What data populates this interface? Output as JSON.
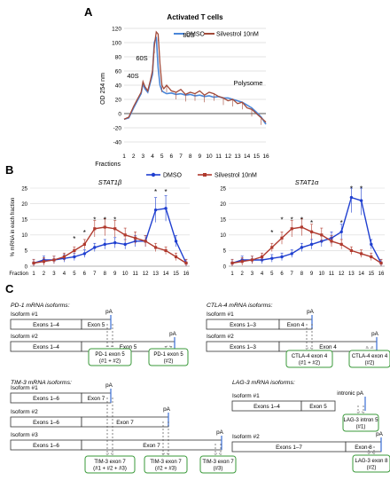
{
  "chart_data": [
    {
      "panel": "A",
      "type": "line",
      "title": "Activated T cells",
      "ylabel": "OD 254 nm",
      "xlabel": "Fractions",
      "ylim": [
        -40,
        120
      ],
      "yticks": [
        120,
        100,
        80,
        60,
        40,
        20,
        0,
        -20,
        -40
      ],
      "x_ticks": [
        "1",
        "2",
        "3",
        "4",
        "5",
        "6",
        "7",
        "8",
        "9",
        "10",
        "11",
        "12",
        "13",
        "14",
        "15",
        "16"
      ],
      "legend_position": "top-right",
      "annotations": [
        "80S",
        "60S",
        "40S",
        "Polysome"
      ],
      "series": [
        {
          "name": "DMSO",
          "color": "#4a86d8",
          "x": [
            1,
            1.5,
            2,
            2.4,
            2.8,
            3,
            3.2,
            3.5,
            3.8,
            4,
            4.2,
            4.4,
            4.6,
            4.8,
            5,
            5.2,
            5.5,
            6,
            6.5,
            7,
            7.5,
            8,
            8.5,
            9,
            9.5,
            10,
            10.5,
            11,
            11.5,
            12,
            12.5,
            13,
            13.5,
            14,
            14.5,
            15,
            15.5,
            16
          ],
          "values": [
            -8,
            -6,
            8,
            18,
            28,
            42,
            35,
            30,
            45,
            55,
            100,
            108,
            65,
            40,
            32,
            30,
            28,
            29,
            27,
            28,
            26,
            27,
            25,
            26,
            24,
            25,
            23,
            24,
            22,
            22,
            20,
            18,
            16,
            12,
            8,
            2,
            -5,
            -15
          ]
        },
        {
          "name": "Silvestrol 10nM",
          "color": "#a24a3a",
          "x": [
            1,
            1.5,
            2,
            2.4,
            2.8,
            3,
            3.2,
            3.5,
            3.8,
            4,
            4.2,
            4.4,
            4.6,
            4.8,
            5,
            5.2,
            5.5,
            6,
            6.5,
            7,
            7.5,
            8,
            8.5,
            9,
            9.5,
            10,
            10.5,
            11,
            11.5,
            12,
            12.5,
            13,
            13.5,
            14,
            14.5,
            15,
            15.5,
            16
          ],
          "values": [
            -8,
            -5,
            10,
            20,
            30,
            45,
            38,
            32,
            48,
            60,
            95,
            115,
            112,
            70,
            40,
            35,
            40,
            32,
            30,
            34,
            27,
            30,
            28,
            32,
            26,
            30,
            28,
            24,
            22,
            18,
            20,
            14,
            16,
            8,
            6,
            0,
            -6,
            -12
          ]
        }
      ]
    },
    {
      "panel": "B",
      "type": "line",
      "title": "STAT1β",
      "ylabel": "% mRNA in each fraction",
      "xlabel": "Fraction",
      "ylim": [
        0,
        25
      ],
      "yticks": [
        0,
        5,
        10,
        15,
        20,
        25
      ],
      "categories": [
        "1",
        "2",
        "3",
        "4",
        "5",
        "6",
        "7",
        "8",
        "9",
        "10",
        "11",
        "12",
        "13",
        "14",
        "15",
        "16"
      ],
      "legend_position": "top",
      "significance_marks": [
        "*",
        "*",
        "*",
        "*",
        "*",
        "*",
        "*"
      ],
      "series": [
        {
          "name": "DMSO",
          "color": "#1f3fd0",
          "values": [
            1,
            2,
            2,
            2.5,
            3,
            4,
            6,
            7,
            7.5,
            7,
            8,
            8,
            18,
            18.5,
            8,
            1
          ]
        },
        {
          "name": "Silvestrol 10nM",
          "color": "#b03a2e",
          "values": [
            1,
            1.5,
            2,
            3,
            5,
            7,
            12,
            12.5,
            12,
            10,
            9,
            8,
            6,
            5,
            3,
            1
          ]
        }
      ]
    },
    {
      "panel": "B",
      "type": "line",
      "title": "STAT1α",
      "ylabel": "",
      "xlabel": "",
      "ylim": [
        0,
        25
      ],
      "yticks": [
        0,
        5,
        10,
        15,
        20,
        25
      ],
      "categories": [
        "1",
        "2",
        "3",
        "4",
        "5",
        "6",
        "7",
        "8",
        "9",
        "10",
        "11",
        "12",
        "13",
        "14",
        "15",
        "16"
      ],
      "significance_marks": [
        "*",
        "*",
        "*",
        "*",
        "*",
        "*",
        "*",
        "*"
      ],
      "series": [
        {
          "name": "DMSO",
          "color": "#1f3fd0",
          "values": [
            1,
            2,
            2,
            2,
            2.5,
            3,
            4,
            6,
            7,
            8,
            9,
            11,
            22,
            21,
            7,
            1
          ]
        },
        {
          "name": "Silvestrol 10nM",
          "color": "#b03a2e",
          "values": [
            1,
            1.5,
            2,
            3,
            6,
            9,
            12,
            12.5,
            11,
            10,
            8,
            7,
            5,
            4,
            3,
            1
          ]
        }
      ]
    }
  ],
  "panel_c": {
    "label": "C",
    "groups": [
      {
        "title": "PD-1 mRNA isoforms:",
        "isoforms": [
          {
            "label": "Isoform #1",
            "exons": [
              "Exons 1–4",
              "Exon 5"
            ],
            "pa": "pA"
          },
          {
            "label": "Isoform #2",
            "exons": [
              "Exons 1–4",
              "Exon 5"
            ],
            "pa": "pA"
          }
        ],
        "amplicons": [
          "PD-1 exon 5\n(#1 + #2)",
          "PD-1 exon 5\n(#2)"
        ]
      },
      {
        "title": "CTLA-4 mRNA isoforms:",
        "isoforms": [
          {
            "label": "Isoform #1",
            "exons": [
              "Exons 1–3",
              "Exon 4"
            ],
            "pa": "pA"
          },
          {
            "label": "Isoform #2",
            "exons": [
              "Exons 1–3",
              "Exon 4"
            ],
            "pa": "pA"
          }
        ],
        "amplicons": [
          "CTLA-4 exon 4\n(#1 + #2)",
          "CTLA-4 exon 4\n(#2)"
        ]
      },
      {
        "title": "TIM-3 mRNA isoforms:",
        "isoforms": [
          {
            "label": "Isoform #1",
            "exons": [
              "Exons 1–6",
              "Exon 7"
            ],
            "pa": "pA"
          },
          {
            "label": "Isoform #2",
            "exons": [
              "Exons 1–6",
              "Exon 7"
            ],
            "pa": "pA"
          },
          {
            "label": "Isoform #3",
            "exons": [
              "Exons 1–6",
              "Exon 7"
            ],
            "pa": "pA"
          }
        ],
        "amplicons": [
          "TIM-3 exon 7\n(#1 + #2 + #3)",
          "TIM-3 exon 7\n(#2 + #3)",
          "TIM-3 exon 7\n(#3)"
        ]
      },
      {
        "title": "LAG-3 mRNA isoforms:",
        "isoforms": [
          {
            "label": "Isoform #1",
            "exons": [
              "Exons 1–4",
              "Exon 5"
            ],
            "pa": "intronic pA"
          },
          {
            "label": "Isoform #2",
            "exons": [
              "Exons 1–7",
              "Exon 8"
            ],
            "pa": "pA"
          }
        ],
        "amplicons": [
          "LAG-3 intron 5\n(#1)",
          "LAG-3 exon 8\n(#2)"
        ]
      }
    ]
  }
}
